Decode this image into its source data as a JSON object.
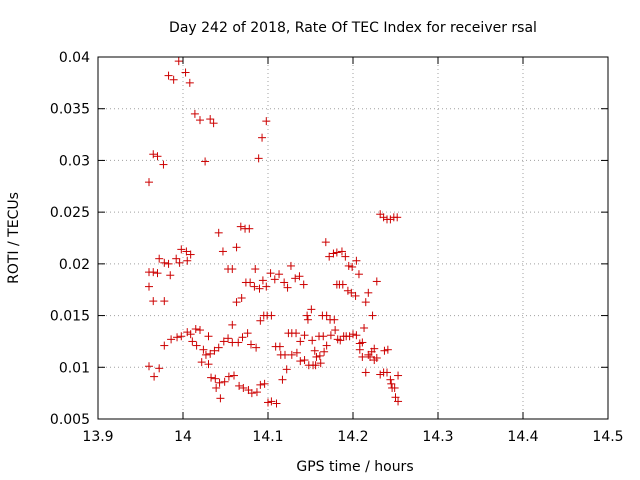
{
  "chart_data": {
    "type": "scatter",
    "title": "Day 242 of 2018, Rate Of TEC Index for receiver rsal",
    "xlabel": "GPS time / hours",
    "ylabel": "ROTI / TECUs",
    "xlim": [
      13.9,
      14.5
    ],
    "ylim": [
      0.005,
      0.04
    ],
    "xticks": [
      "13.9",
      "14",
      "14.1",
      "14.2",
      "14.3",
      "14.4",
      "14.5"
    ],
    "yticks": [
      "0.005",
      "0.01",
      "0.015",
      "0.02",
      "0.025",
      "0.03",
      "0.035",
      "0.04"
    ],
    "marker": "+",
    "grid": "dotted",
    "color": "#cc0000",
    "series": [
      {
        "name": "ROTI",
        "points": [
          [
            13.96,
            0.0279
          ],
          [
            13.96,
            0.0192
          ],
          [
            13.96,
            0.0178
          ],
          [
            13.96,
            0.0101
          ],
          [
            13.965,
            0.0306
          ],
          [
            13.965,
            0.0192
          ],
          [
            13.965,
            0.0164
          ],
          [
            13.966,
            0.0091
          ],
          [
            13.97,
            0.0304
          ],
          [
            13.97,
            0.0191
          ],
          [
            13.972,
            0.0205
          ],
          [
            13.972,
            0.0099
          ],
          [
            13.977,
            0.0296
          ],
          [
            13.978,
            0.0164
          ],
          [
            13.978,
            0.0201
          ],
          [
            13.978,
            0.0121
          ],
          [
            13.983,
            0.0382
          ],
          [
            13.983,
            0.02
          ],
          [
            13.985,
            0.0189
          ],
          [
            13.986,
            0.0127
          ],
          [
            13.989,
            0.0378
          ],
          [
            13.992,
            0.0205
          ],
          [
            13.993,
            0.0129
          ],
          [
            13.995,
            0.0396
          ],
          [
            13.996,
            0.0201
          ],
          [
            13.998,
            0.0214
          ],
          [
            13.998,
            0.013
          ],
          [
            14.003,
            0.0385
          ],
          [
            14.004,
            0.0212
          ],
          [
            14.005,
            0.0203
          ],
          [
            14.005,
            0.0134
          ],
          [
            14.008,
            0.0375
          ],
          [
            14.009,
            0.0209
          ],
          [
            14.009,
            0.0132
          ],
          [
            14.011,
            0.0125
          ],
          [
            14.014,
            0.0345
          ],
          [
            14.015,
            0.0137
          ],
          [
            14.016,
            0.0121
          ],
          [
            14.02,
            0.0339
          ],
          [
            14.02,
            0.0136
          ],
          [
            14.022,
            0.0105
          ],
          [
            14.024,
            0.0117
          ],
          [
            14.026,
            0.0299
          ],
          [
            14.027,
            0.0112
          ],
          [
            14.03,
            0.0103
          ],
          [
            14.03,
            0.013
          ],
          [
            14.032,
            0.034
          ],
          [
            14.032,
            0.0113
          ],
          [
            14.033,
            0.009
          ],
          [
            14.036,
            0.0336
          ],
          [
            14.037,
            0.0116
          ],
          [
            14.038,
            0.0089
          ],
          [
            14.039,
            0.008
          ],
          [
            14.042,
            0.023
          ],
          [
            14.042,
            0.0119
          ],
          [
            14.043,
            0.0085
          ],
          [
            14.044,
            0.007
          ],
          [
            14.047,
            0.0212
          ],
          [
            14.048,
            0.0125
          ],
          [
            14.049,
            0.0086
          ],
          [
            14.053,
            0.0195
          ],
          [
            14.053,
            0.0128
          ],
          [
            14.054,
            0.0091
          ],
          [
            14.058,
            0.0195
          ],
          [
            14.058,
            0.0124
          ],
          [
            14.058,
            0.0141
          ],
          [
            14.06,
            0.0092
          ],
          [
            14.063,
            0.0216
          ],
          [
            14.063,
            0.0163
          ],
          [
            14.065,
            0.0124
          ],
          [
            14.066,
            0.0082
          ],
          [
            14.068,
            0.0236
          ],
          [
            14.069,
            0.0167
          ],
          [
            14.07,
            0.0129
          ],
          [
            14.071,
            0.008
          ],
          [
            14.073,
            0.0234
          ],
          [
            14.074,
            0.0182
          ],
          [
            14.076,
            0.0133
          ],
          [
            14.077,
            0.0078
          ],
          [
            14.078,
            0.0234
          ],
          [
            14.079,
            0.0182
          ],
          [
            14.08,
            0.0122
          ],
          [
            14.081,
            0.0075
          ],
          [
            14.084,
            0.0178
          ],
          [
            14.085,
            0.0195
          ],
          [
            14.086,
            0.0119
          ],
          [
            14.087,
            0.0076
          ],
          [
            14.089,
            0.0302
          ],
          [
            14.09,
            0.0176
          ],
          [
            14.091,
            0.0145
          ],
          [
            14.091,
            0.0083
          ],
          [
            14.093,
            0.0322
          ],
          [
            14.094,
            0.0184
          ],
          [
            14.095,
            0.015
          ],
          [
            14.096,
            0.0084
          ],
          [
            14.098,
            0.0338
          ],
          [
            14.098,
            0.0178
          ],
          [
            14.099,
            0.015
          ],
          [
            14.1,
            0.0066
          ],
          [
            14.103,
            0.0191
          ],
          [
            14.104,
            0.015
          ],
          [
            14.104,
            0.0067
          ],
          [
            14.108,
            0.0185
          ],
          [
            14.109,
            0.012
          ],
          [
            14.11,
            0.0065
          ],
          [
            14.113,
            0.019
          ],
          [
            14.114,
            0.012
          ],
          [
            14.115,
            0.0112
          ],
          [
            14.117,
            0.0088
          ],
          [
            14.119,
            0.0182
          ],
          [
            14.12,
            0.0112
          ],
          [
            14.122,
            0.0098
          ],
          [
            14.123,
            0.0177
          ],
          [
            14.124,
            0.0133
          ],
          [
            14.127,
            0.0198
          ],
          [
            14.128,
            0.0133
          ],
          [
            14.128,
            0.0112
          ],
          [
            14.132,
            0.0186
          ],
          [
            14.133,
            0.0133
          ],
          [
            14.134,
            0.0114
          ],
          [
            14.137,
            0.0188
          ],
          [
            14.138,
            0.0125
          ],
          [
            14.138,
            0.0106
          ],
          [
            14.142,
            0.018
          ],
          [
            14.143,
            0.0131
          ],
          [
            14.143,
            0.0107
          ],
          [
            14.146,
            0.015
          ],
          [
            14.147,
            0.0146
          ],
          [
            14.148,
            0.0102
          ],
          [
            14.151,
            0.0156
          ],
          [
            14.152,
            0.0126
          ],
          [
            14.153,
            0.0102
          ],
          [
            14.155,
            0.0116
          ],
          [
            14.156,
            0.0102
          ],
          [
            14.157,
            0.011
          ],
          [
            14.16,
            0.013
          ],
          [
            14.161,
            0.0111
          ],
          [
            14.162,
            0.0104
          ],
          [
            14.164,
            0.015
          ],
          [
            14.165,
            0.013
          ],
          [
            14.166,
            0.0115
          ],
          [
            14.168,
            0.0221
          ],
          [
            14.169,
            0.015
          ],
          [
            14.169,
            0.0121
          ],
          [
            14.172,
            0.0207
          ],
          [
            14.173,
            0.0146
          ],
          [
            14.174,
            0.0131
          ],
          [
            14.177,
            0.021
          ],
          [
            14.178,
            0.0146
          ],
          [
            14.179,
            0.0136
          ],
          [
            14.181,
            0.0211
          ],
          [
            14.181,
            0.018
          ],
          [
            14.182,
            0.0127
          ],
          [
            14.184,
            0.018
          ],
          [
            14.185,
            0.0126
          ],
          [
            14.187,
            0.0212
          ],
          [
            14.188,
            0.018
          ],
          [
            14.189,
            0.013
          ],
          [
            14.191,
            0.0207
          ],
          [
            14.192,
            0.013
          ],
          [
            14.194,
            0.0174
          ],
          [
            14.195,
            0.0198
          ],
          [
            14.196,
            0.013
          ],
          [
            14.198,
            0.0172
          ],
          [
            14.199,
            0.0197
          ],
          [
            14.2,
            0.0132
          ],
          [
            14.203,
            0.0169
          ],
          [
            14.204,
            0.0203
          ],
          [
            14.204,
            0.0131
          ],
          [
            14.207,
            0.019
          ],
          [
            14.208,
            0.0123
          ],
          [
            14.208,
            0.0117
          ],
          [
            14.211,
            0.0124
          ],
          [
            14.211,
            0.011
          ],
          [
            14.213,
            0.0138
          ],
          [
            14.215,
            0.0163
          ],
          [
            14.215,
            0.0095
          ],
          [
            14.218,
            0.0112
          ],
          [
            14.218,
            0.0172
          ],
          [
            14.22,
            0.011
          ],
          [
            14.222,
            0.0115
          ],
          [
            14.223,
            0.015
          ],
          [
            14.225,
            0.0107
          ],
          [
            14.225,
            0.0118
          ],
          [
            14.228,
            0.0183
          ],
          [
            14.228,
            0.0109
          ],
          [
            14.232,
            0.0248
          ],
          [
            14.232,
            0.0093
          ],
          [
            14.236,
            0.0245
          ],
          [
            14.236,
            0.0095
          ],
          [
            14.237,
            0.0116
          ],
          [
            14.24,
            0.0243
          ],
          [
            14.24,
            0.0095
          ],
          [
            14.241,
            0.0117
          ],
          [
            14.244,
            0.0243
          ],
          [
            14.244,
            0.0088
          ],
          [
            14.245,
            0.0084
          ],
          [
            14.246,
            0.008
          ],
          [
            14.248,
            0.0245
          ],
          [
            14.249,
            0.008
          ],
          [
            14.25,
            0.0071
          ],
          [
            14.252,
            0.0245
          ],
          [
            14.253,
            0.0067
          ],
          [
            14.253,
            0.0092
          ]
        ]
      }
    ]
  }
}
